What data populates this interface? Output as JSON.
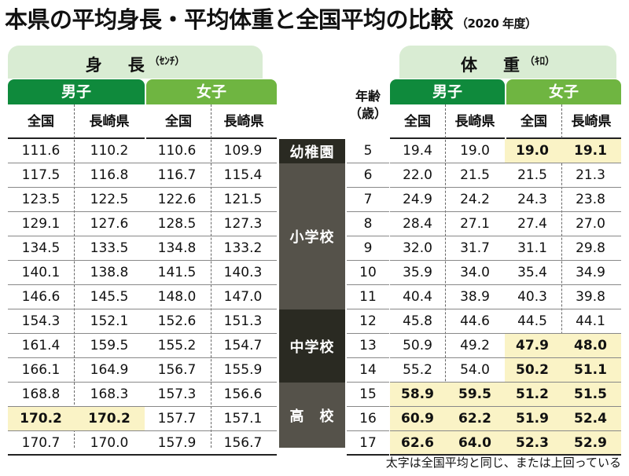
{
  "title": "本県の平均身長・平均体重と全国平均の比較",
  "title_year": "（2020 年度）",
  "height_section": {
    "label": "身　長",
    "unit": "（ｾﾝﾁ）"
  },
  "weight_section": {
    "label": "体　重",
    "unit": "（ｷﾛ）"
  },
  "group_labels": {
    "male": "男子",
    "female": "女子"
  },
  "col_labels": {
    "national": "全国",
    "nagasaki": "長崎県"
  },
  "age_header": {
    "line1": "年齢",
    "line2": "（歳）"
  },
  "schools": [
    {
      "label": "幼稚園"
    },
    {
      "label": "小学校"
    },
    {
      "label": "中学校"
    },
    {
      "label": "高　校"
    }
  ],
  "footnote": "太字は全国平均と同じ、または上回っている",
  "colors": {
    "male": "#0f8a3c",
    "female": "#6fb541",
    "highlight": "#faf3c6",
    "pill": "#d9ecd3"
  },
  "chart_data": {
    "type": "table",
    "title": "本県の平均身長・平均体重と全国平均の比較",
    "columns": [
      "身長 男子 全国",
      "身長 男子 長崎県",
      "身長 女子 全国",
      "身長 女子 長崎県",
      "年齢",
      "体重 男子 全国",
      "体重 男子 長崎県",
      "体重 女子 全国",
      "体重 女子 長崎県"
    ],
    "rows": [
      {
        "age": "5",
        "h": [
          "111.6",
          "110.2",
          "110.6",
          "109.9"
        ],
        "w": [
          "19.4",
          "19.0",
          "19.0",
          "19.1"
        ],
        "bold_w": [
          false,
          false,
          true,
          true
        ],
        "bold_h": [
          false,
          false,
          false,
          false
        ]
      },
      {
        "age": "6",
        "h": [
          "117.5",
          "116.8",
          "116.7",
          "115.4"
        ],
        "w": [
          "22.0",
          "21.5",
          "21.5",
          "21.3"
        ],
        "bold_w": [
          false,
          false,
          false,
          false
        ],
        "bold_h": [
          false,
          false,
          false,
          false
        ]
      },
      {
        "age": "7",
        "h": [
          "123.5",
          "122.5",
          "122.6",
          "121.5"
        ],
        "w": [
          "24.9",
          "24.2",
          "24.3",
          "23.8"
        ],
        "bold_w": [
          false,
          false,
          false,
          false
        ],
        "bold_h": [
          false,
          false,
          false,
          false
        ]
      },
      {
        "age": "8",
        "h": [
          "129.1",
          "127.6",
          "128.5",
          "127.3"
        ],
        "w": [
          "28.4",
          "27.1",
          "27.4",
          "27.0"
        ],
        "bold_w": [
          false,
          false,
          false,
          false
        ],
        "bold_h": [
          false,
          false,
          false,
          false
        ]
      },
      {
        "age": "9",
        "h": [
          "134.5",
          "133.5",
          "134.8",
          "133.2"
        ],
        "w": [
          "32.0",
          "31.7",
          "31.1",
          "29.8"
        ],
        "bold_w": [
          false,
          false,
          false,
          false
        ],
        "bold_h": [
          false,
          false,
          false,
          false
        ]
      },
      {
        "age": "10",
        "h": [
          "140.1",
          "138.8",
          "141.5",
          "140.3"
        ],
        "w": [
          "35.9",
          "34.0",
          "35.4",
          "34.9"
        ],
        "bold_w": [
          false,
          false,
          false,
          false
        ],
        "bold_h": [
          false,
          false,
          false,
          false
        ]
      },
      {
        "age": "11",
        "h": [
          "146.6",
          "145.5",
          "148.0",
          "147.0"
        ],
        "w": [
          "40.4",
          "38.9",
          "40.3",
          "39.8"
        ],
        "bold_w": [
          false,
          false,
          false,
          false
        ],
        "bold_h": [
          false,
          false,
          false,
          false
        ]
      },
      {
        "age": "12",
        "h": [
          "154.3",
          "152.1",
          "152.6",
          "151.3"
        ],
        "w": [
          "45.8",
          "44.6",
          "44.5",
          "44.1"
        ],
        "bold_w": [
          false,
          false,
          false,
          false
        ],
        "bold_h": [
          false,
          false,
          false,
          false
        ]
      },
      {
        "age": "13",
        "h": [
          "161.4",
          "159.5",
          "155.2",
          "154.7"
        ],
        "w": [
          "50.9",
          "49.2",
          "47.9",
          "48.0"
        ],
        "bold_w": [
          false,
          false,
          true,
          true
        ],
        "bold_h": [
          false,
          false,
          false,
          false
        ]
      },
      {
        "age": "14",
        "h": [
          "166.1",
          "164.9",
          "156.7",
          "155.9"
        ],
        "w": [
          "55.2",
          "54.0",
          "50.2",
          "51.1"
        ],
        "bold_w": [
          false,
          false,
          true,
          true
        ],
        "bold_h": [
          false,
          false,
          false,
          false
        ]
      },
      {
        "age": "15",
        "h": [
          "168.8",
          "168.3",
          "157.3",
          "156.6"
        ],
        "w": [
          "58.9",
          "59.5",
          "51.2",
          "51.5"
        ],
        "bold_w": [
          true,
          true,
          true,
          true
        ],
        "bold_h": [
          false,
          false,
          false,
          false
        ]
      },
      {
        "age": "16",
        "h": [
          "170.2",
          "170.2",
          "157.7",
          "157.1"
        ],
        "w": [
          "60.9",
          "62.2",
          "51.9",
          "52.4"
        ],
        "bold_w": [
          true,
          true,
          true,
          true
        ],
        "bold_h": [
          true,
          true,
          false,
          false
        ]
      },
      {
        "age": "17",
        "h": [
          "170.7",
          "170.0",
          "157.9",
          "156.7"
        ],
        "w": [
          "62.6",
          "64.0",
          "52.3",
          "52.9"
        ],
        "bold_w": [
          true,
          true,
          true,
          true
        ],
        "bold_h": [
          false,
          false,
          false,
          false
        ]
      }
    ]
  }
}
